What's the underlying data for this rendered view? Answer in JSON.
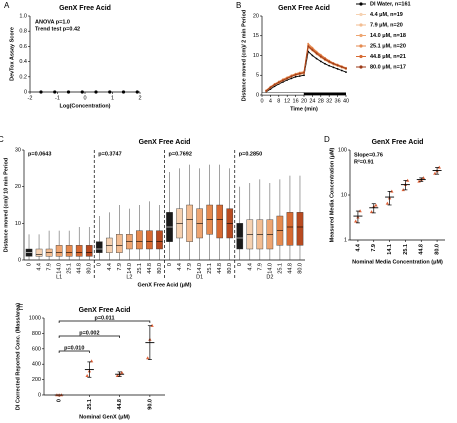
{
  "chart_data": [
    {
      "type": "scatter",
      "label": "A",
      "title": "GenX Free Acid",
      "xlabel": "Log(Concentration)",
      "ylabel": "DevTox Assay Score",
      "annotations": [
        "ANOVA p=1.0",
        "Trend test p=0.42"
      ],
      "x": [
        -1.6,
        -1.1,
        -0.6,
        -0.1,
        0.4,
        0.9,
        1.4,
        1.9
      ],
      "values": [
        0,
        0,
        0,
        0,
        0,
        0,
        0,
        0
      ],
      "color": "#000000",
      "xlim": [
        -2,
        2
      ],
      "xticks": [
        -2,
        -1,
        0,
        1,
        2
      ],
      "ylim": [
        0,
        1
      ],
      "yticks": [
        0,
        0.2,
        0.4,
        0.6,
        0.8,
        {
          "value": 1,
          "label": "1.0"
        }
      ]
    },
    {
      "type": "line",
      "label": "B",
      "title": "GenX Free Acid",
      "xlabel": "Time (min)",
      "ylabel": "Distance moved (cm)/ 2 min Period",
      "x": [
        2,
        4,
        6,
        8,
        10,
        12,
        14,
        16,
        18,
        20,
        22,
        24,
        26,
        28,
        30,
        32,
        34,
        36,
        38,
        40
      ],
      "series": [
        {
          "name": "DI Water, n=161",
          "color": "#000000",
          "values": [
            0.8,
            1.5,
            2.2,
            2.8,
            3.3,
            3.8,
            4.2,
            4.6,
            4.8,
            5.0,
            11.0,
            10.0,
            9.2,
            8.5,
            7.9,
            7.4,
            7.0,
            6.6,
            6.2,
            5.8
          ]
        },
        {
          "name": "4.4 μM, n=19",
          "color": "#f6d2b2",
          "values": [
            1.0,
            1.9,
            2.6,
            3.1,
            3.7,
            4.2,
            4.7,
            5.1,
            5.4,
            5.6,
            12.5,
            11.5,
            10.6,
            9.8,
            9.0,
            8.4,
            7.9,
            7.4,
            7.0,
            6.6
          ]
        },
        {
          "name": "7.9 μM, n=20",
          "color": "#f3bd92",
          "values": [
            1.1,
            2.0,
            2.7,
            3.3,
            3.9,
            4.4,
            4.9,
            5.3,
            5.6,
            5.8,
            12.8,
            11.8,
            10.8,
            10.0,
            9.2,
            8.6,
            8.0,
            7.6,
            7.2,
            6.8
          ]
        },
        {
          "name": "14.0 μM, n=18",
          "color": "#eea571",
          "values": [
            0.9,
            1.8,
            2.5,
            3.0,
            3.6,
            4.1,
            4.6,
            5.0,
            5.2,
            5.4,
            12.0,
            11.2,
            10.3,
            9.5,
            8.8,
            8.2,
            7.7,
            7.3,
            6.9,
            6.5
          ]
        },
        {
          "name": "25.1 μM, n=20",
          "color": "#e58a4f",
          "values": [
            1.2,
            2.1,
            2.8,
            3.4,
            4.0,
            4.5,
            5.0,
            5.4,
            5.7,
            5.9,
            13.0,
            12.0,
            11.0,
            10.2,
            9.4,
            8.7,
            8.1,
            7.7,
            7.3,
            6.9
          ]
        },
        {
          "name": "44.8 μM, n=21",
          "color": "#d76a32",
          "values": [
            1.1,
            2.0,
            2.7,
            3.2,
            3.8,
            4.3,
            4.8,
            5.2,
            5.5,
            5.7,
            12.6,
            11.7,
            10.8,
            10.0,
            9.3,
            8.6,
            8.1,
            7.6,
            7.2,
            6.8
          ]
        },
        {
          "name": "80.0 μM, n=17",
          "color": "#9c3a17",
          "values": [
            1.0,
            1.9,
            2.6,
            3.2,
            3.7,
            4.2,
            4.7,
            5.1,
            5.4,
            5.6,
            12.3,
            11.4,
            10.5,
            9.7,
            9.0,
            8.4,
            7.9,
            7.5,
            7.1,
            6.7
          ]
        }
      ],
      "xlim": [
        0,
        40
      ],
      "xticks": [
        0,
        4,
        8,
        12,
        16,
        20,
        24,
        28,
        32,
        36,
        40
      ],
      "ylim": [
        0,
        20
      ],
      "yticks": [
        0,
        5,
        10,
        15,
        20
      ]
    },
    {
      "type": "box",
      "label": "C",
      "title": "GenX Free Acid",
      "xlabel": "GenX Free Acid (μM)",
      "ylabel": "Distance moved (cm)/ 10 min Period",
      "categories": [
        "L1",
        "L2",
        "D1",
        "D2"
      ],
      "annotations": [
        "p=0.0643",
        "p=0.3747",
        "p=0.7692",
        "p=0.2850"
      ],
      "series": [
        {
          "name": "0",
          "color": "#1a1a1a",
          "low": [
            0,
            0,
            0,
            0
          ],
          "q1": [
            1,
            2,
            5,
            3
          ],
          "median": [
            2,
            3,
            9,
            6
          ],
          "q3": [
            3,
            5,
            13,
            10
          ],
          "high": [
            7,
            12,
            24,
            20
          ]
        },
        {
          "name": "4.4",
          "color": "#f6d2b2",
          "low": [
            0,
            0,
            0,
            0
          ],
          "q1": [
            1,
            2,
            6,
            3
          ],
          "median": [
            1.5,
            4,
            10,
            7
          ],
          "q3": [
            3,
            6,
            14,
            11
          ],
          "high": [
            7,
            13,
            25,
            21
          ]
        },
        {
          "name": "7.9",
          "color": "#f3bd92",
          "low": [
            0,
            0,
            0,
            0
          ],
          "q1": [
            1,
            2,
            5,
            3
          ],
          "median": [
            2,
            4,
            11,
            7
          ],
          "q3": [
            3,
            7,
            15,
            11
          ],
          "high": [
            8,
            15,
            26,
            22
          ]
        },
        {
          "name": "14.0",
          "color": "#eea571",
          "low": [
            0,
            0,
            0,
            0
          ],
          "q1": [
            1,
            3,
            6,
            3
          ],
          "median": [
            2,
            5,
            10,
            7
          ],
          "q3": [
            4,
            7,
            14,
            11
          ],
          "high": [
            8,
            14,
            25,
            21
          ]
        },
        {
          "name": "25.1",
          "color": "#e58a4f",
          "low": [
            0,
            0,
            0,
            0
          ],
          "q1": [
            1,
            3,
            7,
            4
          ],
          "median": [
            2,
            5,
            11,
            8
          ],
          "q3": [
            4,
            8,
            15,
            12
          ],
          "high": [
            8,
            15,
            26,
            22
          ]
        },
        {
          "name": "44.8",
          "color": "#d76a32",
          "low": [
            0,
            0,
            0,
            0
          ],
          "q1": [
            1,
            3,
            6,
            4
          ],
          "median": [
            2,
            5,
            11,
            9
          ],
          "q3": [
            4,
            8,
            15,
            13
          ],
          "high": [
            9,
            16,
            26,
            23
          ]
        },
        {
          "name": "80.0",
          "color": "#b84a20",
          "low": [
            0,
            0,
            0,
            0
          ],
          "q1": [
            1,
            3,
            6,
            4
          ],
          "median": [
            2,
            5,
            10,
            9
          ],
          "q3": [
            4,
            8,
            14,
            13
          ],
          "high": [
            9,
            15,
            25,
            23
          ]
        }
      ],
      "ylim": [
        0,
        30
      ],
      "yticks": [
        0,
        10,
        20,
        30
      ]
    },
    {
      "type": "dot",
      "label": "D",
      "title": "GenX Free Acid",
      "xlabel": "Nominal Media Concentration (μM)",
      "ylabel": "Measured Media Concentration (μM)",
      "annotations": [
        "Slope=0.76",
        "R²=0.91"
      ],
      "log_y": true,
      "color": "#e0633a",
      "categories": [
        "4.4",
        "7.9",
        "14.1",
        "25.1",
        "44.8",
        "80.0"
      ],
      "values": [
        3.4,
        5.2,
        9,
        17,
        22,
        35
      ],
      "errors": [
        1,
        1.2,
        3,
        4,
        2,
        6
      ],
      "replicates": [
        [
          2.6,
          3.2,
          4.4
        ],
        [
          4.2,
          5.5,
          5.9
        ],
        [
          6.5,
          8.5,
          12
        ],
        [
          13,
          17,
          21
        ],
        [
          20,
          22,
          24
        ],
        [
          30,
          34,
          41
        ]
      ],
      "ylim": [
        1,
        100
      ],
      "yticks": [
        1,
        10,
        100
      ]
    },
    {
      "type": "dot",
      "label": "E",
      "title": "GenX Free Acid",
      "xlabel": "Nominal GenX (μM)",
      "ylabel": "DI Corrected Reported Conc. (Mass/area)",
      "color": "#e0633a",
      "categories": [
        "0",
        "25.1",
        "44.8",
        "90.0"
      ],
      "values": [
        0,
        330,
        270,
        680
      ],
      "errors": [
        0,
        100,
        30,
        220
      ],
      "replicates": [
        [
          0,
          0,
          0
        ],
        [
          250,
          310,
          440
        ],
        [
          250,
          270,
          290
        ],
        [
          480,
          720,
          900
        ]
      ],
      "comparisons": [
        {
          "between": [
            "0",
            "25.1"
          ],
          "label": "p=0.010"
        },
        {
          "between": [
            "0",
            "44.8"
          ],
          "label": "p=0.002"
        },
        {
          "between": [
            "0",
            "90.0"
          ],
          "label": "p=0.011"
        }
      ],
      "ylim": [
        0,
        1000
      ],
      "yticks": [
        0,
        200,
        400,
        600,
        800,
        1000
      ]
    }
  ]
}
